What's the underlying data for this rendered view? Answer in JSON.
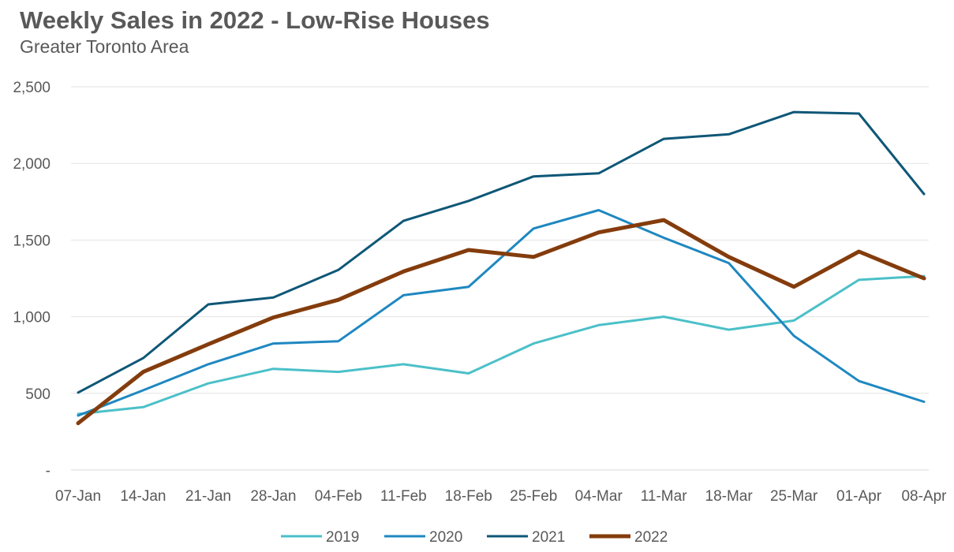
{
  "chart_data": {
    "type": "line",
    "title": "Weekly Sales in 2022 - Low-Rise Houses",
    "subtitle": "Greater Toronto Area",
    "xlabel": "",
    "ylabel": "",
    "ylim": [
      0,
      2500
    ],
    "yticks": [
      0,
      500,
      1000,
      1500,
      2000,
      2500
    ],
    "ytick_labels": [
      "-",
      "500",
      "1,000",
      "1,500",
      "2,000",
      "2,500"
    ],
    "categories": [
      "07-Jan",
      "14-Jan",
      "21-Jan",
      "28-Jan",
      "04-Feb",
      "11-Feb",
      "18-Feb",
      "25-Feb",
      "04-Mar",
      "11-Mar",
      "18-Mar",
      "25-Mar",
      "01-Apr",
      "08-Apr"
    ],
    "grid": true,
    "legend_position": "bottom",
    "series": [
      {
        "name": "2019",
        "color": "#4bc0c8",
        "width": 3,
        "values": [
          365,
          410,
          565,
          660,
          640,
          690,
          630,
          825,
          945,
          1000,
          915,
          975,
          1240,
          1265
        ]
      },
      {
        "name": "2020",
        "color": "#1e88c0",
        "width": 3,
        "values": [
          355,
          520,
          690,
          825,
          840,
          1140,
          1195,
          1575,
          1695,
          1515,
          1350,
          875,
          580,
          445
        ]
      },
      {
        "name": "2021",
        "color": "#0e5777",
        "width": 3,
        "values": [
          505,
          730,
          1080,
          1125,
          1305,
          1625,
          1755,
          1915,
          1935,
          2160,
          2190,
          2335,
          2325,
          1800
        ]
      },
      {
        "name": "2022",
        "color": "#843c0c",
        "width": 5,
        "values": [
          305,
          640,
          820,
          995,
          1110,
          1295,
          1435,
          1390,
          1550,
          1630,
          1390,
          1195,
          1425,
          1250
        ]
      }
    ]
  }
}
